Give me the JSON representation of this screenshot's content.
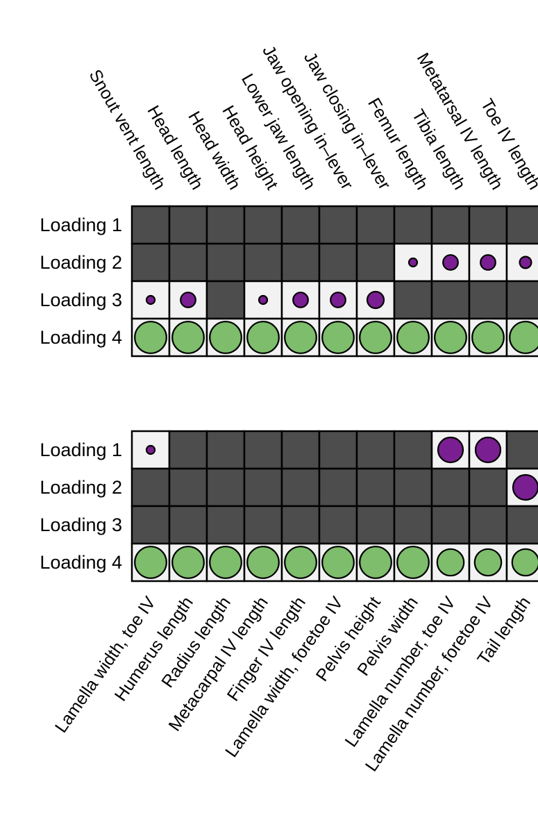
{
  "colors": {
    "background": "#ffffff",
    "empty_cell": "#4d4d4d",
    "active_cell": "#f2f2f2",
    "grid_line": "#000000",
    "negative_loading": "#7a1f91",
    "positive_loading": "#7dbd6b"
  },
  "chart_data": [
    {
      "type": "heatmap",
      "rows": [
        "Loading 1",
        "Loading 2",
        "Loading 3",
        "Loading 4"
      ],
      "columns": [
        "Snout vent length",
        "Head length",
        "Head width",
        "Head height",
        "Lower jaw length",
        "Jaw opening in–lever",
        "Jaw closing in–lever",
        "Femur length",
        "Tibia length",
        "Metatarsal IV length",
        "Toe IV length"
      ],
      "column_labels_position": "top",
      "cells": [
        [
          null,
          null,
          null,
          null,
          null,
          null,
          null,
          null,
          null,
          null,
          null
        ],
        [
          null,
          null,
          null,
          null,
          null,
          null,
          null,
          -0.25,
          -0.45,
          -0.45,
          -0.35
        ],
        [
          -0.25,
          -0.45,
          null,
          -0.25,
          -0.45,
          -0.45,
          -0.5,
          null,
          null,
          null,
          null
        ],
        [
          0.95,
          0.95,
          0.95,
          0.95,
          0.95,
          0.95,
          0.95,
          0.95,
          0.95,
          0.95,
          0.95
        ]
      ]
    },
    {
      "type": "heatmap",
      "rows": [
        "Loading 1",
        "Loading 2",
        "Loading 3",
        "Loading 4"
      ],
      "columns": [
        "Lamella width, toe IV",
        "Humerus length",
        "Radius length",
        "Metacarpal IV length",
        "Finger IV length",
        "Lamella width, foretoe IV",
        "Pelvis height",
        "Pelvis width",
        "Lamella number, toe IV",
        "Lamella number, foretoe IV",
        "Tail length"
      ],
      "column_labels_position": "bottom",
      "cells": [
        [
          -0.25,
          null,
          null,
          null,
          null,
          null,
          null,
          null,
          -0.75,
          -0.75,
          null
        ],
        [
          null,
          null,
          null,
          null,
          null,
          null,
          null,
          null,
          null,
          null,
          -0.75
        ],
        [
          null,
          null,
          null,
          null,
          null,
          null,
          null,
          null,
          null,
          null,
          null
        ],
        [
          0.95,
          0.95,
          0.95,
          0.95,
          0.95,
          0.95,
          0.95,
          0.95,
          0.8,
          0.8,
          0.8
        ]
      ]
    }
  ]
}
